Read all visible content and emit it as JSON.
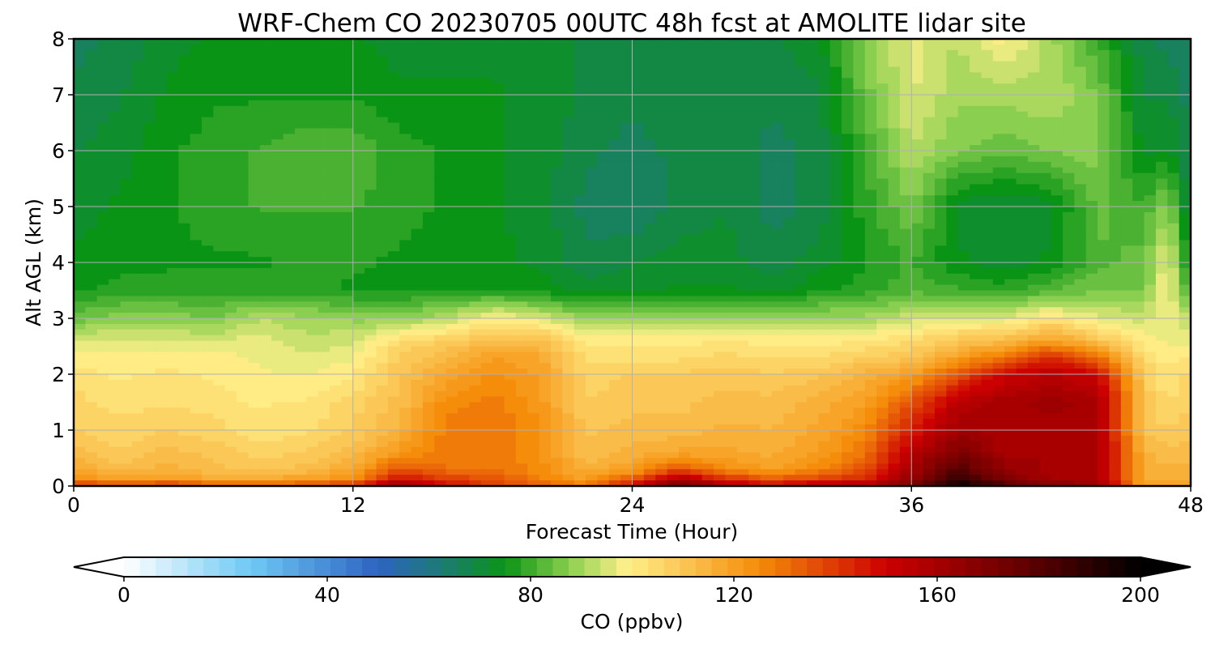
{
  "chart_data": {
    "type": "heatmap",
    "title": "WRF-Chem CO  20230705 00UTC 48h fcst at AMOLITE lidar site",
    "xlabel": "Forecast Time (Hour)",
    "ylabel": "Alt AGL (km)",
    "xlim": [
      0,
      48
    ],
    "ylim": [
      0,
      8
    ],
    "x_ticks": [
      "0",
      "12",
      "24",
      "36",
      "48"
    ],
    "y_ticks": [
      "0",
      "1",
      "2",
      "3",
      "4",
      "5",
      "6",
      "7",
      "8"
    ],
    "grid": true,
    "colorbar": {
      "label": "CO  (ppbv)",
      "range": [
        0,
        200
      ],
      "ticks": [
        "0",
        "40",
        "80",
        "120",
        "160",
        "200"
      ],
      "extend": "both",
      "stops": [
        {
          "value": 0,
          "color": "#ffffff"
        },
        {
          "value": 25,
          "color": "#6ec9f4"
        },
        {
          "value": 50,
          "color": "#2e63c2"
        },
        {
          "value": 62,
          "color": "#1d7a78"
        },
        {
          "value": 75,
          "color": "#0a9416"
        },
        {
          "value": 88,
          "color": "#8fd151"
        },
        {
          "value": 99,
          "color": "#fff08a"
        },
        {
          "value": 125,
          "color": "#f58c0a"
        },
        {
          "value": 150,
          "color": "#cc0000"
        },
        {
          "value": 175,
          "color": "#6b0000"
        },
        {
          "value": 200,
          "color": "#000000"
        }
      ]
    },
    "x": [
      0,
      2,
      4,
      6,
      8,
      10,
      12,
      14,
      16,
      18,
      20,
      22,
      24,
      26,
      28,
      30,
      32,
      34,
      36,
      38,
      40,
      42,
      44,
      46,
      47,
      48
    ],
    "y": [
      0,
      0.1,
      0.3,
      0.6,
      1,
      1.5,
      2,
      2.3,
      2.6,
      3,
      3.5,
      4,
      5,
      6,
      7,
      8
    ],
    "z": [
      [
        145,
        140,
        145,
        140,
        140,
        140,
        145,
        165,
        150,
        140,
        135,
        130,
        150,
        175,
        160,
        150,
        160,
        160,
        170,
        200,
        185,
        170,
        165,
        120,
        120,
        120
      ],
      [
        125,
        120,
        122,
        118,
        118,
        120,
        125,
        150,
        140,
        135,
        128,
        120,
        135,
        160,
        145,
        135,
        140,
        145,
        165,
        190,
        170,
        160,
        160,
        115,
        115,
        115
      ],
      [
        118,
        112,
        115,
        112,
        110,
        112,
        118,
        135,
        130,
        130,
        125,
        115,
        120,
        135,
        125,
        120,
        125,
        135,
        160,
        180,
        165,
        160,
        160,
        115,
        115,
        115
      ],
      [
        112,
        108,
        112,
        110,
        106,
        108,
        112,
        122,
        128,
        128,
        124,
        112,
        115,
        118,
        118,
        116,
        120,
        130,
        155,
        170,
        160,
        160,
        160,
        115,
        112,
        112
      ],
      [
        108,
        106,
        108,
        106,
        103,
        104,
        108,
        115,
        128,
        130,
        124,
        110,
        112,
        112,
        115,
        114,
        118,
        125,
        145,
        162,
        158,
        160,
        160,
        110,
        108,
        110
      ],
      [
        106,
        103,
        104,
        103,
        101,
        102,
        106,
        112,
        125,
        128,
        122,
        108,
        110,
        110,
        112,
        112,
        115,
        120,
        135,
        155,
        160,
        162,
        160,
        110,
        104,
        108
      ],
      [
        103,
        101,
        102,
        101,
        99,
        98,
        101,
        110,
        118,
        124,
        120,
        106,
        108,
        108,
        110,
        108,
        110,
        115,
        120,
        135,
        150,
        155,
        150,
        108,
        102,
        106
      ],
      [
        100,
        100,
        100,
        100,
        98,
        96,
        98,
        108,
        114,
        120,
        118,
        104,
        104,
        104,
        106,
        104,
        104,
        108,
        110,
        120,
        130,
        142,
        130,
        104,
        100,
        102
      ],
      [
        96,
        96,
        96,
        95,
        97,
        93,
        95,
        104,
        108,
        112,
        112,
        100,
        100,
        100,
        102,
        100,
        100,
        102,
        104,
        110,
        112,
        120,
        110,
        100,
        98,
        97
      ],
      [
        84,
        88,
        88,
        86,
        92,
        90,
        88,
        88,
        92,
        100,
        96,
        88,
        88,
        90,
        90,
        88,
        90,
        90,
        94,
        96,
        96,
        102,
        96,
        94,
        98,
        92
      ],
      [
        76,
        78,
        78,
        78,
        78,
        78,
        76,
        76,
        75,
        76,
        75,
        72,
        72,
        74,
        74,
        72,
        76,
        78,
        82,
        80,
        78,
        82,
        86,
        86,
        100,
        78
      ],
      [
        74,
        75,
        76,
        76,
        76,
        78,
        77,
        76,
        75,
        74,
        73,
        68,
        70,
        72,
        72,
        68,
        72,
        76,
        80,
        74,
        72,
        74,
        82,
        84,
        98,
        72
      ],
      [
        72,
        74,
        76,
        78,
        80,
        80,
        80,
        78,
        76,
        74,
        72,
        66,
        64,
        68,
        70,
        66,
        68,
        78,
        86,
        72,
        70,
        72,
        84,
        80,
        88,
        68
      ],
      [
        70,
        72,
        76,
        78,
        80,
        82,
        82,
        78,
        76,
        74,
        72,
        68,
        66,
        68,
        70,
        66,
        68,
        80,
        92,
        86,
        84,
        86,
        88,
        72,
        74,
        66
      ],
      [
        68,
        70,
        74,
        76,
        76,
        76,
        76,
        74,
        74,
        74,
        72,
        70,
        68,
        70,
        70,
        68,
        70,
        84,
        96,
        90,
        90,
        92,
        86,
        70,
        70,
        66
      ],
      [
        66,
        68,
        72,
        74,
        74,
        74,
        74,
        72,
        72,
        72,
        72,
        70,
        70,
        70,
        70,
        70,
        72,
        88,
        96,
        92,
        100,
        90,
        80,
        68,
        66,
        64
      ]
    ]
  }
}
